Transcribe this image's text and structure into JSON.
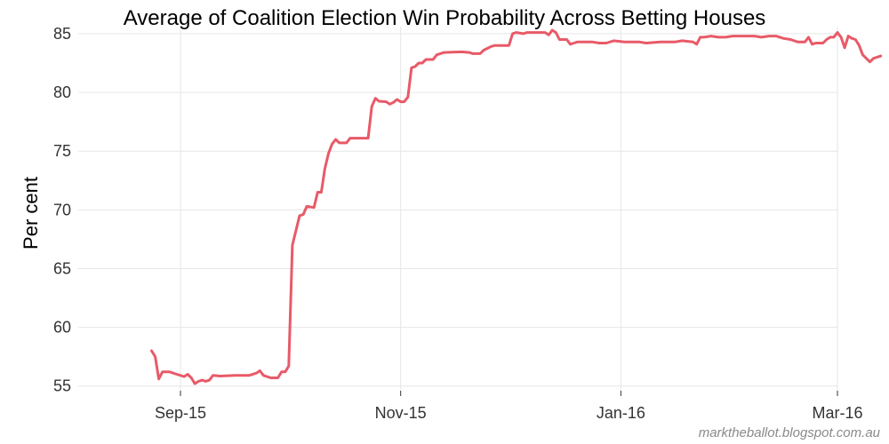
{
  "chart_data": {
    "type": "line",
    "title": "Average of Coalition Election Win Probability Across Betting Houses",
    "xlabel": "",
    "ylabel": "Per cent",
    "ylim": [
      54.6,
      85.6
    ],
    "xlim": [
      "2015-08-21",
      "2016-03-03"
    ],
    "y_ticks": [
      55,
      60,
      65,
      70,
      75,
      80,
      85
    ],
    "x_ticks": [
      {
        "date": "2015-09-01",
        "label": "Sep-15"
      },
      {
        "date": "2015-11-01",
        "label": "Nov-15"
      },
      {
        "date": "2016-01-01",
        "label": "Jan-16"
      },
      {
        "date": "2016-03-01",
        "label": "Mar-16"
      }
    ],
    "grid": true,
    "series": [
      {
        "color": "#e85a68",
        "points": [
          [
            "2015-08-24",
            58.0
          ],
          [
            "2015-08-25",
            57.5
          ],
          [
            "2015-08-26",
            55.6
          ],
          [
            "2015-08-27",
            56.2
          ],
          [
            "2015-08-29",
            56.2
          ],
          [
            "2015-08-31",
            56.0
          ],
          [
            "2015-09-02",
            55.8
          ],
          [
            "2015-09-03",
            56.0
          ],
          [
            "2015-09-04",
            55.7
          ],
          [
            "2015-09-05",
            55.2
          ],
          [
            "2015-09-06",
            55.4
          ],
          [
            "2015-09-07",
            55.5
          ],
          [
            "2015-09-08",
            55.4
          ],
          [
            "2015-09-09",
            55.5
          ],
          [
            "2015-09-10",
            55.9
          ],
          [
            "2015-09-12",
            55.85
          ],
          [
            "2015-09-16",
            55.9
          ],
          [
            "2015-09-20",
            55.9
          ],
          [
            "2015-09-22",
            56.1
          ],
          [
            "2015-09-23",
            56.3
          ],
          [
            "2015-09-24",
            55.9
          ],
          [
            "2015-09-26",
            55.7
          ],
          [
            "2015-09-28",
            55.7
          ],
          [
            "2015-09-29",
            56.2
          ],
          [
            "2015-09-30",
            56.2
          ],
          [
            "2015-10-01",
            56.7
          ],
          [
            "2015-10-02",
            67.0
          ],
          [
            "2015-10-04",
            69.5
          ],
          [
            "2015-10-05",
            69.6
          ],
          [
            "2015-10-06",
            70.3
          ],
          [
            "2015-10-08",
            70.2
          ],
          [
            "2015-10-09",
            71.5
          ],
          [
            "2015-10-10",
            71.5
          ],
          [
            "2015-10-11",
            73.5
          ],
          [
            "2015-10-12",
            74.8
          ],
          [
            "2015-10-13",
            75.6
          ],
          [
            "2015-10-14",
            76.0
          ],
          [
            "2015-10-15",
            75.7
          ],
          [
            "2015-10-17",
            75.7
          ],
          [
            "2015-10-18",
            76.1
          ],
          [
            "2015-10-23",
            76.1
          ],
          [
            "2015-10-24",
            78.8
          ],
          [
            "2015-10-25",
            79.5
          ],
          [
            "2015-10-26",
            79.25
          ],
          [
            "2015-10-28",
            79.2
          ],
          [
            "2015-10-29",
            79.0
          ],
          [
            "2015-10-30",
            79.15
          ],
          [
            "2015-10-31",
            79.4
          ],
          [
            "2015-11-01",
            79.2
          ],
          [
            "2015-11-02",
            79.2
          ],
          [
            "2015-11-03",
            79.6
          ],
          [
            "2015-11-04",
            82.1
          ],
          [
            "2015-11-05",
            82.2
          ],
          [
            "2015-11-06",
            82.5
          ],
          [
            "2015-11-07",
            82.5
          ],
          [
            "2015-11-08",
            82.8
          ],
          [
            "2015-11-10",
            82.8
          ],
          [
            "2015-11-11",
            83.2
          ],
          [
            "2015-11-12",
            83.3
          ],
          [
            "2015-11-13",
            83.4
          ],
          [
            "2015-11-18",
            83.45
          ],
          [
            "2015-11-20",
            83.4
          ],
          [
            "2015-11-21",
            83.3
          ],
          [
            "2015-11-23",
            83.3
          ],
          [
            "2015-11-24",
            83.6
          ],
          [
            "2015-11-26",
            83.9
          ],
          [
            "2015-11-27",
            84.0
          ],
          [
            "2015-12-01",
            84.0
          ],
          [
            "2015-12-02",
            85.0
          ],
          [
            "2015-12-03",
            85.1
          ],
          [
            "2015-12-05",
            85.0
          ],
          [
            "2015-12-06",
            85.1
          ],
          [
            "2015-12-11",
            85.1
          ],
          [
            "2015-12-12",
            84.9
          ],
          [
            "2015-12-13",
            85.3
          ],
          [
            "2015-12-14",
            85.1
          ],
          [
            "2015-12-15",
            84.5
          ],
          [
            "2015-12-17",
            84.5
          ],
          [
            "2015-12-18",
            84.1
          ],
          [
            "2015-12-19",
            84.2
          ],
          [
            "2015-12-20",
            84.3
          ],
          [
            "2015-12-24",
            84.3
          ],
          [
            "2015-12-26",
            84.2
          ],
          [
            "2015-12-28",
            84.2
          ],
          [
            "2015-12-30",
            84.4
          ],
          [
            "2016-01-02",
            84.3
          ],
          [
            "2016-01-06",
            84.3
          ],
          [
            "2016-01-08",
            84.2
          ],
          [
            "2016-01-12",
            84.3
          ],
          [
            "2016-01-16",
            84.3
          ],
          [
            "2016-01-18",
            84.4
          ],
          [
            "2016-01-21",
            84.3
          ],
          [
            "2016-01-22",
            84.1
          ],
          [
            "2016-01-23",
            84.7
          ],
          [
            "2016-01-24",
            84.7
          ],
          [
            "2016-01-26",
            84.8
          ],
          [
            "2016-01-28",
            84.7
          ],
          [
            "2016-01-30",
            84.7
          ],
          [
            "2016-02-01",
            84.8
          ],
          [
            "2016-02-07",
            84.8
          ],
          [
            "2016-02-09",
            84.7
          ],
          [
            "2016-02-11",
            84.8
          ],
          [
            "2016-02-13",
            84.8
          ],
          [
            "2016-02-15",
            84.6
          ],
          [
            "2016-02-17",
            84.5
          ],
          [
            "2016-02-19",
            84.3
          ],
          [
            "2016-02-21",
            84.3
          ],
          [
            "2016-02-22",
            84.7
          ],
          [
            "2016-02-23",
            84.1
          ],
          [
            "2016-02-24",
            84.2
          ],
          [
            "2016-02-26",
            84.2
          ],
          [
            "2016-02-27",
            84.5
          ],
          [
            "2016-02-28",
            84.7
          ],
          [
            "2016-02-29",
            84.7
          ],
          [
            "2016-03-01",
            85.1
          ],
          [
            "2016-03-02",
            84.7
          ],
          [
            "2016-03-03",
            83.8
          ],
          [
            "2016-03-04",
            84.8
          ],
          [
            "2016-03-05",
            84.6
          ],
          [
            "2016-03-06",
            84.5
          ],
          [
            "2016-03-07",
            84.0
          ],
          [
            "2016-03-08",
            83.2
          ],
          [
            "2016-03-10",
            82.6
          ],
          [
            "2016-03-11",
            82.9
          ],
          [
            "2016-03-13",
            83.1
          ]
        ]
      }
    ]
  },
  "credit": "marktheballot.blogspot.com.au"
}
